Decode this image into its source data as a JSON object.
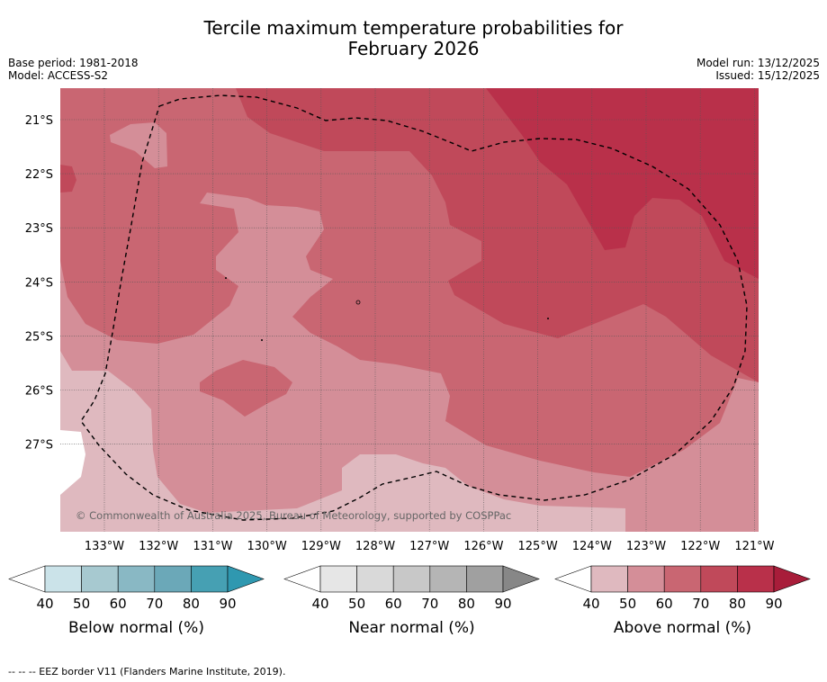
{
  "title": {
    "line1": "Tercile maximum temperature probabilities for",
    "line2": "February 2026"
  },
  "meta": {
    "base_period": "Base period: 1981-2018",
    "model": "Model: ACCESS-S2",
    "model_run": "Model run: 13/12/2025",
    "issued": "Issued: 15/12/2025"
  },
  "map": {
    "lat_ticks": [
      "21°S",
      "22°S",
      "23°S",
      "24°S",
      "25°S",
      "26°S",
      "27°S"
    ],
    "lon_ticks": [
      "133°W",
      "132°W",
      "131°W",
      "130°W",
      "129°W",
      "128°W",
      "127°W",
      "126°W",
      "125°W",
      "124°W",
      "123°W",
      "122°W",
      "121°W"
    ],
    "copyright": "© Commonwealth of Australia 2025, Bureau of Meteorology, supported by COSPPac"
  },
  "colors": {
    "above": [
      "#dfb9bf",
      "#d48e98",
      "#c96672",
      "#c0495a",
      "#b9304a",
      "#a81d3a"
    ],
    "near": [
      "#e6e6e6",
      "#d9d9d9",
      "#c8c8c8",
      "#b5b5b5",
      "#a0a0a0",
      "#878787"
    ],
    "below": [
      "#cbe3e9",
      "#a7c9d0",
      "#89b8c4",
      "#6ba8b8",
      "#46a0b3",
      "#2f98b0"
    ]
  },
  "legends": [
    {
      "key": "below",
      "label": "Below normal (%)",
      "ticks": [
        "40",
        "50",
        "60",
        "70",
        "80",
        "90"
      ]
    },
    {
      "key": "near",
      "label": "Near normal (%)",
      "ticks": [
        "40",
        "50",
        "60",
        "70",
        "80",
        "90"
      ]
    },
    {
      "key": "above",
      "label": "Above normal (%)",
      "ticks": [
        "40",
        "50",
        "60",
        "70",
        "80",
        "90"
      ]
    }
  ],
  "footer": "--  --  -- EEZ border V11 (Flanders Marine Institute, 2019)."
}
